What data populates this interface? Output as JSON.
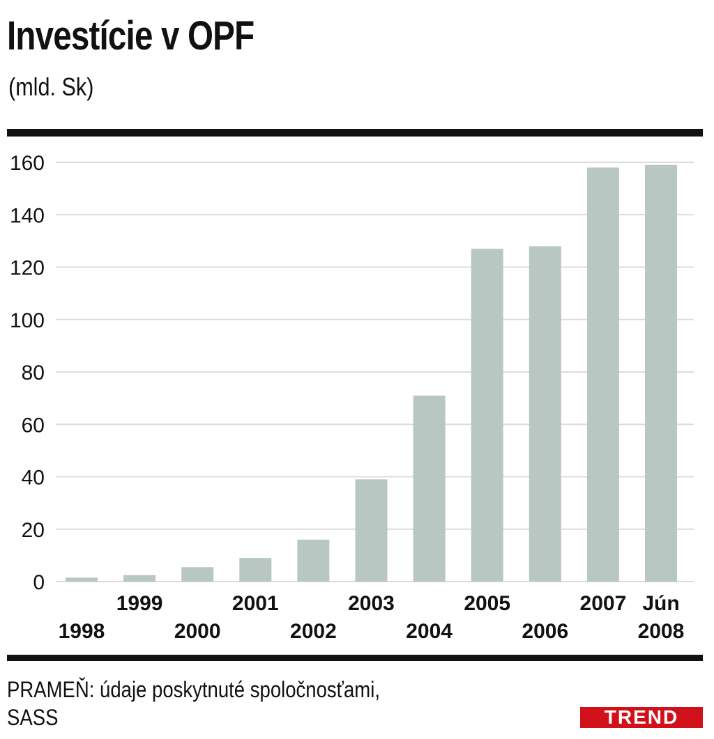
{
  "header": {
    "title": "Investície v OPF",
    "subtitle": "(mld. Sk)"
  },
  "footer": {
    "source_line1": "PRAMEŇ: údaje poskytnuté spoločnosťami,",
    "source_line2": "SASS",
    "logo": "TREND"
  },
  "colors": {
    "bar": "#b8c7c1",
    "grid": "#dcdcdc",
    "text": "#111111",
    "logo": "#d0111a"
  },
  "chart_data": {
    "type": "bar",
    "title": "Investície v OPF",
    "ylabel": "(mld. Sk)",
    "categories": [
      "1998",
      "1999",
      "2000",
      "2001",
      "2002",
      "2003",
      "2004",
      "2005",
      "2006",
      "2007",
      "Jún 2008"
    ],
    "category_lines": [
      [
        "1998"
      ],
      [
        "1999"
      ],
      [
        "2000"
      ],
      [
        "2001"
      ],
      [
        "2002"
      ],
      [
        "2003"
      ],
      [
        "2004"
      ],
      [
        "2005"
      ],
      [
        "2006"
      ],
      [
        "2007"
      ],
      [
        "Jún",
        "2008"
      ]
    ],
    "values": [
      1.5,
      2.5,
      5.5,
      9,
      16,
      39,
      71,
      127,
      128,
      158,
      159
    ],
    "ylim": [
      0,
      160
    ],
    "yticks": [
      0,
      20,
      40,
      60,
      80,
      100,
      120,
      140,
      160
    ],
    "grid": true
  }
}
